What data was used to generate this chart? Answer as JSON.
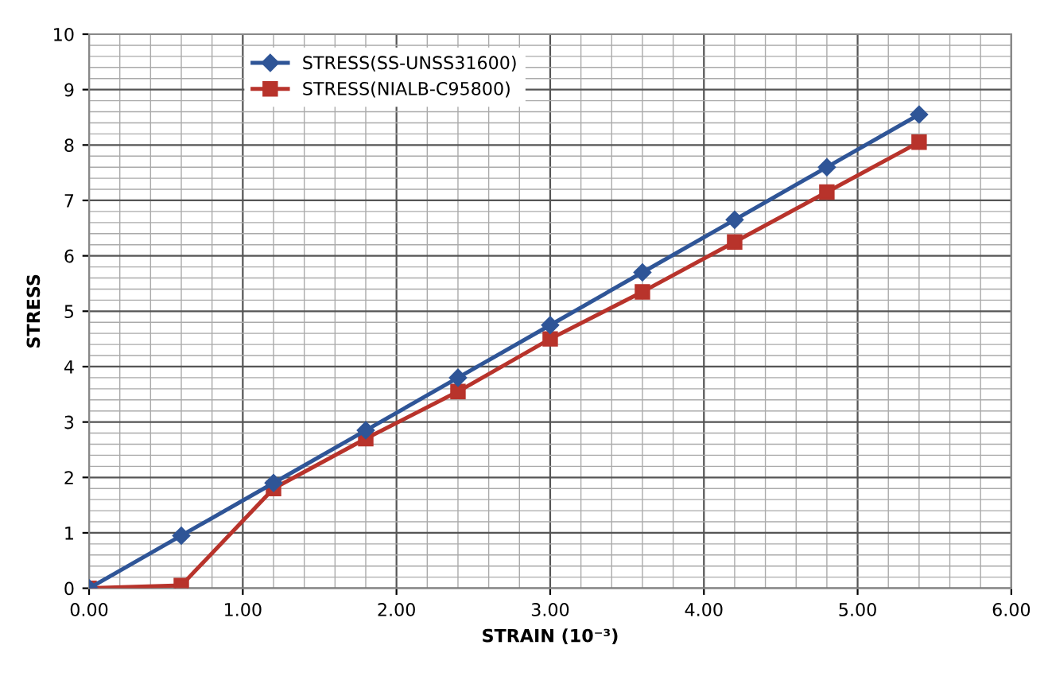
{
  "chart_data": {
    "type": "line",
    "xlabel": "STRAIN (10⁻³)",
    "ylabel": "STRESS",
    "x": [
      0,
      0.6,
      1.2,
      1.8,
      2.4,
      3.0,
      3.6,
      4.2,
      4.8,
      5.4
    ],
    "series": [
      {
        "name": "STRESS(SS-UNSS31600)",
        "color": "#2f5597",
        "marker": "diamond",
        "values": [
          0,
          0.95,
          1.9,
          2.85,
          3.8,
          4.75,
          5.7,
          6.65,
          7.6,
          8.55
        ]
      },
      {
        "name": "STRESS(NIALB-C95800)",
        "color": "#b8332b",
        "marker": "square",
        "values": [
          0,
          0.05,
          1.8,
          2.7,
          3.55,
          4.5,
          5.35,
          6.25,
          7.15,
          8.05
        ]
      }
    ],
    "xlim": [
      0,
      6
    ],
    "xticks": [
      {
        "value": 0,
        "label": "0.00"
      },
      {
        "value": 1,
        "label": "1.00"
      },
      {
        "value": 2,
        "label": "2.00"
      },
      {
        "value": 3,
        "label": "3.00"
      },
      {
        "value": 4,
        "label": "4.00"
      },
      {
        "value": 5,
        "label": "5.00"
      },
      {
        "value": 6,
        "label": "6.00"
      }
    ],
    "ylim": [
      0,
      10
    ],
    "yticks": [
      0,
      1,
      2,
      3,
      4,
      5,
      6,
      7,
      8,
      9,
      10
    ],
    "grid": true,
    "legend": "top left"
  }
}
